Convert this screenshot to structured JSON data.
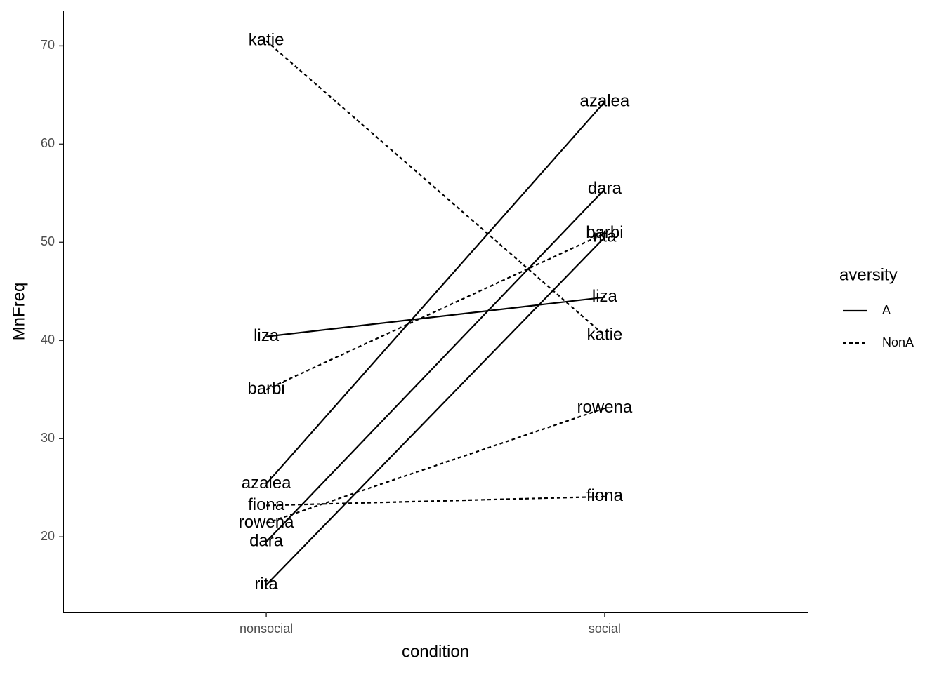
{
  "chart_data": {
    "type": "line",
    "x_label": "condition",
    "y_label": "MnFreq",
    "categories": [
      "nonsocial",
      "social"
    ],
    "ylim": [
      12.3,
      73.6
    ],
    "yticks": [
      20,
      30,
      40,
      50,
      60,
      70
    ],
    "legend": {
      "title": "aversity",
      "position": "right",
      "entries": [
        {
          "label": "A",
          "dash": "solid"
        },
        {
          "label": "NonA",
          "dash": "dashed"
        }
      ]
    },
    "series": [
      {
        "name": "katie",
        "aversity": "NonA",
        "color": "#000000",
        "values": [
          70.5,
          40.5
        ]
      },
      {
        "name": "azalea",
        "aversity": "A",
        "color": "#000000",
        "values": [
          25.4,
          64.3
        ]
      },
      {
        "name": "dara",
        "aversity": "A",
        "color": "#000000",
        "values": [
          19.5,
          55.4
        ]
      },
      {
        "name": "rita",
        "aversity": "A",
        "color": "#000000",
        "values": [
          15.1,
          50.5
        ]
      },
      {
        "name": "liza",
        "aversity": "A",
        "color": "#000000",
        "values": [
          40.4,
          44.4
        ]
      },
      {
        "name": "barbi",
        "aversity": "NonA",
        "color": "#000000",
        "values": [
          35.0,
          50.9
        ]
      },
      {
        "name": "fiona",
        "aversity": "NonA",
        "color": "#000000",
        "values": [
          23.2,
          24.1
        ]
      },
      {
        "name": "rowena",
        "aversity": "NonA",
        "color": "#000000",
        "values": [
          21.4,
          33.1
        ]
      }
    ]
  }
}
